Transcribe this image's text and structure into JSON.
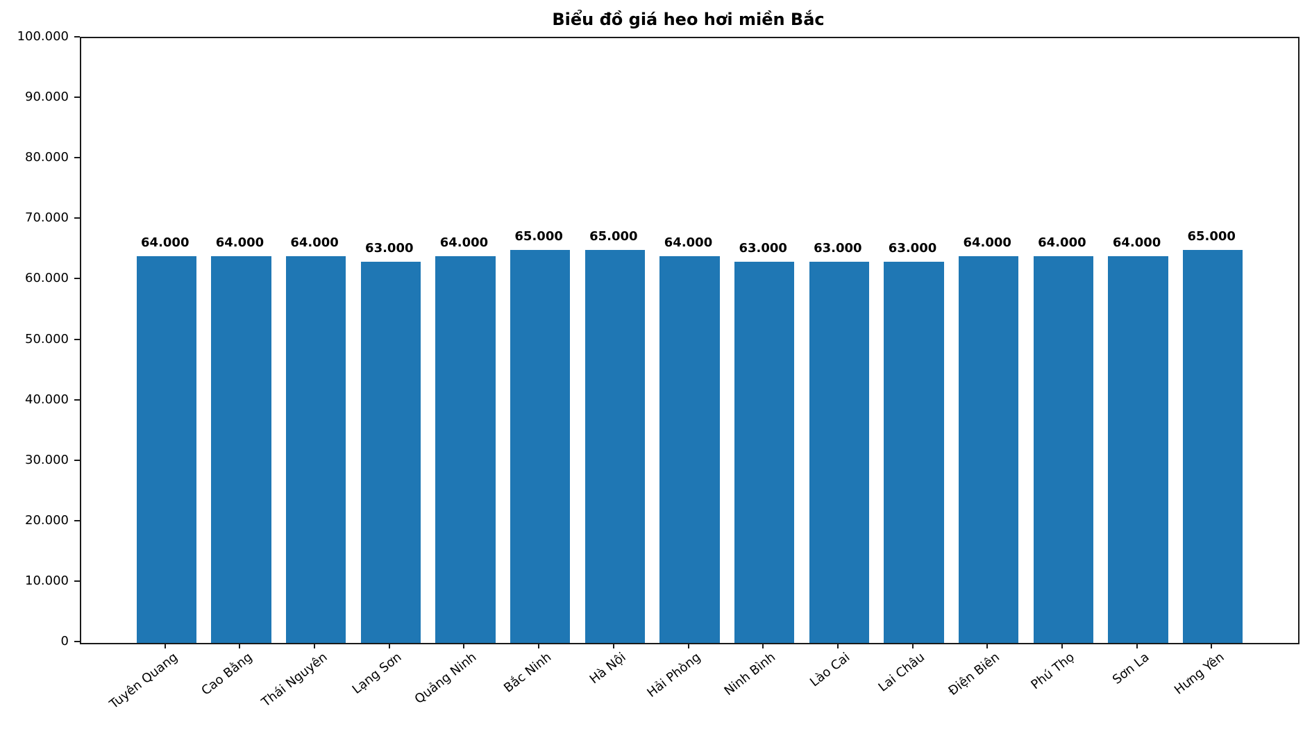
{
  "chart_data": {
    "type": "bar",
    "title": "Biểu đồ giá heo hơi miền Bắc",
    "categories": [
      "Tuyên Quang",
      "Cao Bằng",
      "Thái Nguyên",
      "Lạng Sơn",
      "Quảng Ninh",
      "Bắc Ninh",
      "Hà Nội",
      "Hải Phòng",
      "Ninh Bình",
      "Lào Cai",
      "Lai Châu",
      "Điện Biên",
      "Phú Thọ",
      "Sơn La",
      "Hưng Yên"
    ],
    "values": [
      64000,
      64000,
      64000,
      63000,
      64000,
      65000,
      65000,
      64000,
      63000,
      63000,
      63000,
      64000,
      64000,
      64000,
      65000
    ],
    "value_labels": [
      "64.000",
      "64.000",
      "64.000",
      "63.000",
      "64.000",
      "65.000",
      "65.000",
      "64.000",
      "63.000",
      "63.000",
      "63.000",
      "64.000",
      "64.000",
      "64.000",
      "65.000"
    ],
    "ytick_values": [
      0,
      10000,
      20000,
      30000,
      40000,
      50000,
      60000,
      70000,
      80000,
      90000,
      100000
    ],
    "ytick_labels": [
      "0",
      "10.000",
      "20.000",
      "30.000",
      "40.000",
      "50.000",
      "60.000",
      "70.000",
      "80.000",
      "90.000",
      "100.000"
    ],
    "ylim": [
      0,
      100000
    ],
    "xlabel": "",
    "ylabel": "",
    "grid": false,
    "legend_position": "none",
    "bar_color": "#1f77b4"
  }
}
